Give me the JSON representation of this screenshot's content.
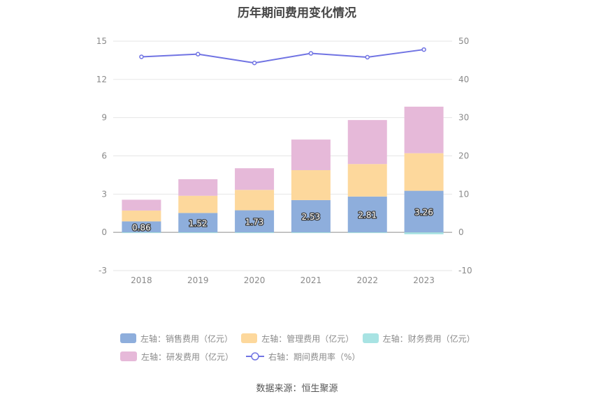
{
  "chart_data": {
    "type": "bar",
    "title": "历年期间费用变化情况",
    "categories": [
      "2018",
      "2019",
      "2020",
      "2021",
      "2022",
      "2023"
    ],
    "stacked": true,
    "series": [
      {
        "name": "左轴：销售费用（亿元）",
        "axis": "left",
        "type": "bar",
        "color": "#8eaedc",
        "values": [
          0.86,
          1.52,
          1.73,
          2.53,
          2.81,
          3.26
        ],
        "labels": [
          "0.86",
          "1.52",
          "1.73",
          "2.53",
          "2.81",
          "3.26"
        ]
      },
      {
        "name": "左轴：管理费用（亿元）",
        "axis": "left",
        "type": "bar",
        "color": "#fdd89c",
        "values": [
          0.85,
          1.35,
          1.6,
          2.35,
          2.55,
          2.95
        ]
      },
      {
        "name": "左轴：财务费用（亿元）",
        "axis": "left",
        "type": "bar",
        "color": "#a8e3e3",
        "values": [
          -0.02,
          -0.02,
          -0.02,
          -0.02,
          -0.03,
          -0.15
        ]
      },
      {
        "name": "左轴：研发费用（亿元）",
        "axis": "left",
        "type": "bar",
        "color": "#e6b9d9",
        "values": [
          0.85,
          1.3,
          1.7,
          2.4,
          3.45,
          3.65
        ]
      },
      {
        "name": "右轴：期间费用率（%）",
        "axis": "right",
        "type": "line",
        "color": "#7073e3",
        "values": [
          45.9,
          46.6,
          44.3,
          46.8,
          45.8,
          47.8
        ]
      }
    ],
    "y_left": {
      "min": -3,
      "max": 15,
      "ticks": [
        -3,
        0,
        3,
        6,
        9,
        12,
        15
      ]
    },
    "y_right": {
      "min": -10,
      "max": 50,
      "ticks": [
        -10,
        0,
        10,
        20,
        30,
        40,
        50
      ]
    },
    "grid": true,
    "legend_position": "bottom"
  },
  "source": "数据来源：恒生聚源"
}
